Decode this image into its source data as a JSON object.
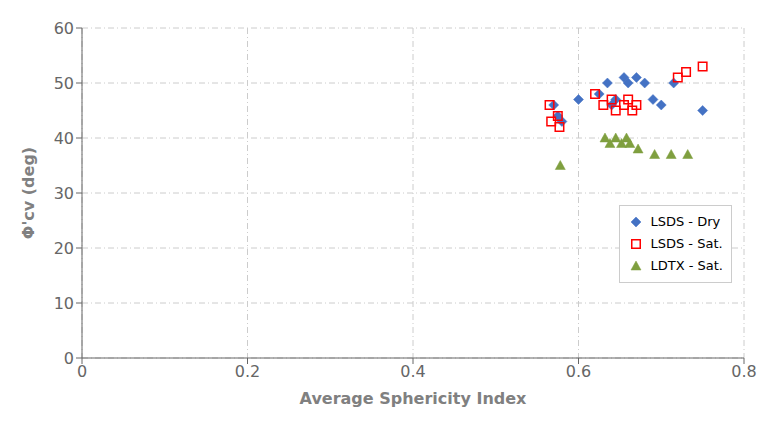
{
  "chart_data": {
    "type": "scatter",
    "xlabel": "Average Sphericity Index",
    "ylabel": "Φ'cv (deg)",
    "xlim": [
      0,
      0.8
    ],
    "ylim": [
      0,
      60
    ],
    "xticks": [
      0,
      0.2,
      0.4,
      0.6,
      0.8
    ],
    "yticks": [
      0,
      10,
      20,
      30,
      40,
      50,
      60
    ],
    "grid": true,
    "legend": "right",
    "series": [
      {
        "name": "LSDS - Dry",
        "color": "#4472C4",
        "marker": "diamond",
        "x": [
          0.57,
          0.575,
          0.58,
          0.6,
          0.625,
          0.635,
          0.64,
          0.645,
          0.655,
          0.66,
          0.67,
          0.68,
          0.69,
          0.7,
          0.715,
          0.75
        ],
        "values": [
          46,
          44,
          43,
          47,
          48,
          50,
          46,
          47,
          51,
          50,
          51,
          50,
          47,
          46,
          50,
          45
        ]
      },
      {
        "name": "LSDS - Sat.",
        "color": "#FF0000",
        "marker": "open_square",
        "x": [
          0.565,
          0.567,
          0.575,
          0.577,
          0.62,
          0.63,
          0.64,
          0.645,
          0.655,
          0.66,
          0.665,
          0.67,
          0.72,
          0.73,
          0.75
        ],
        "values": [
          46,
          43,
          44,
          42,
          48,
          46,
          47,
          45,
          46,
          47,
          45,
          46,
          51,
          52,
          53
        ]
      },
      {
        "name": "LDTX - Sat.",
        "color": "#7F9F3F",
        "marker": "triangle",
        "x": [
          0.578,
          0.632,
          0.638,
          0.645,
          0.652,
          0.658,
          0.662,
          0.672,
          0.692,
          0.712,
          0.732
        ],
        "values": [
          35,
          40,
          39,
          40,
          39,
          40,
          39,
          38,
          37,
          37,
          37
        ]
      }
    ]
  }
}
